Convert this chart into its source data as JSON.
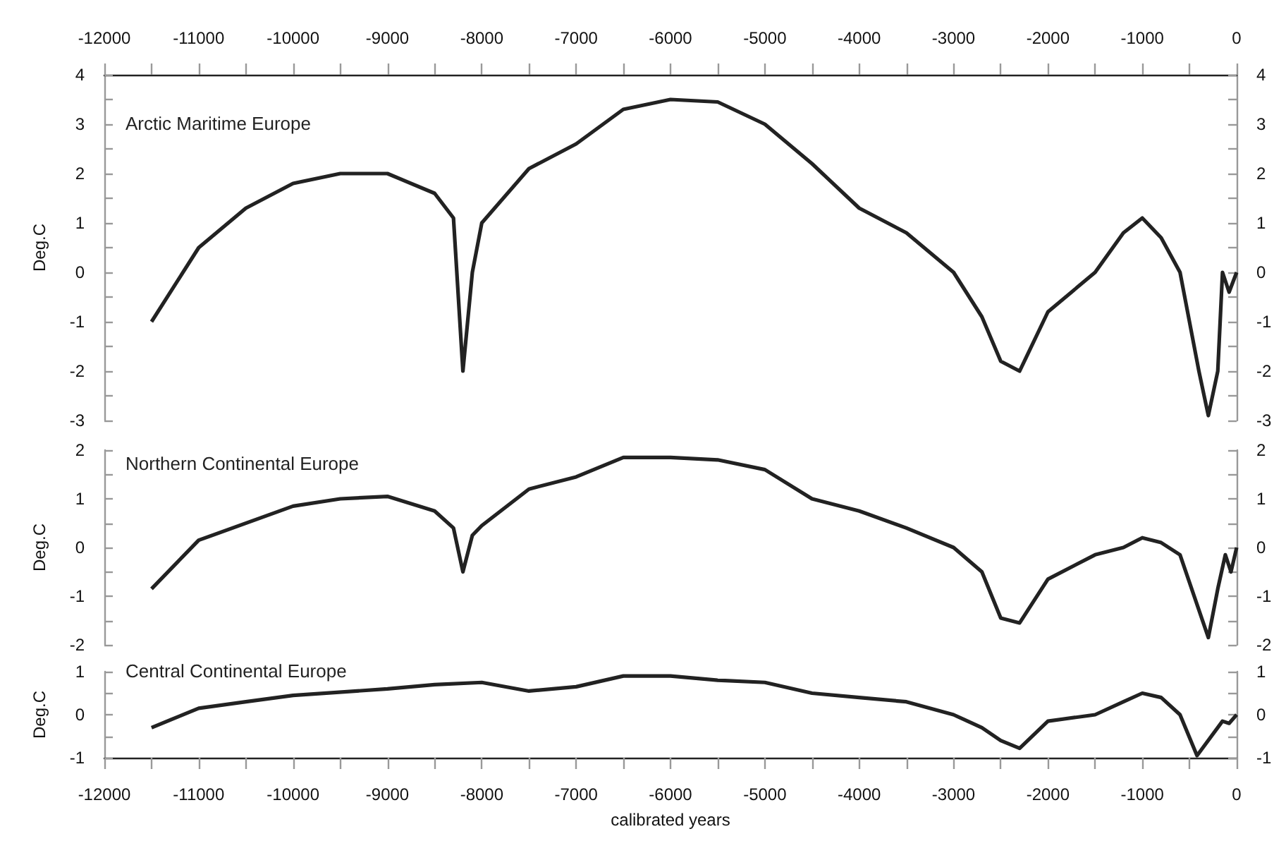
{
  "chart_data": [
    {
      "type": "line",
      "ylabel": "Deg.C",
      "xlim": [
        -12000,
        0
      ],
      "xticks": [
        -12000,
        {
          "value": -11500,
          "label": null
        },
        -11000,
        {
          "value": -10500,
          "label": null
        },
        -10000,
        {
          "value": -9500,
          "label": null
        },
        -9000,
        {
          "value": -8500,
          "label": null
        },
        -8000,
        {
          "value": -7500,
          "label": null
        },
        -7000,
        {
          "value": -6500,
          "label": null
        },
        -6000,
        {
          "value": -5500,
          "label": null
        },
        -5000,
        {
          "value": -4500,
          "label": null
        },
        -4000,
        {
          "value": -3500,
          "label": null
        },
        -3000,
        {
          "value": -2500,
          "label": null
        },
        -2000,
        {
          "value": -1500,
          "label": null
        },
        -1000,
        {
          "value": -500,
          "label": null
        },
        0
      ],
      "ylim": [
        -3,
        4
      ],
      "yticks": [
        -3,
        {
          "value": -2.5,
          "label": null
        },
        -2,
        {
          "value": -1.5,
          "label": null
        },
        -1,
        {
          "value": -0.5,
          "label": null
        },
        0,
        {
          "value": 0.5,
          "label": null
        },
        1,
        {
          "value": 1.5,
          "label": null
        },
        2,
        {
          "value": 2.5,
          "label": null
        },
        3,
        {
          "value": 3.5,
          "label": null
        },
        4
      ],
      "y2lim": [
        -3,
        4
      ],
      "y2ticks": [
        -3,
        {
          "value": -2.5,
          "label": null
        },
        -2,
        {
          "value": -1.5,
          "label": null
        },
        -1,
        {
          "value": -0.5,
          "label": null
        },
        0,
        {
          "value": 0.5,
          "label": null
        },
        1,
        {
          "value": 1.5,
          "label": null
        },
        2,
        {
          "value": 2.5,
          "label": null
        },
        3,
        {
          "value": 3.5,
          "label": null
        },
        4
      ],
      "grid": false,
      "legend": "top left",
      "series": [
        {
          "name": "Arctic Maritime Europe",
          "color": "#222222",
          "x": [
            -11500,
            -11000,
            -10500,
            -10000,
            -9500,
            -9000,
            -8500,
            -8300,
            -8200,
            -8100,
            -8000,
            -7500,
            -7000,
            -6500,
            -6000,
            -5500,
            -5000,
            -4500,
            -4000,
            -3500,
            -3000,
            -2700,
            -2500,
            -2300,
            -2000,
            -1500,
            -1200,
            -1000,
            -800,
            -600,
            -400,
            -300,
            -200,
            -150,
            -80,
            0
          ],
          "values": [
            -1,
            0.5,
            1.3,
            1.8,
            2.0,
            2.0,
            1.6,
            1.1,
            -2.0,
            0,
            1.0,
            2.1,
            2.6,
            3.3,
            3.5,
            3.45,
            3.0,
            2.2,
            1.3,
            0.8,
            0,
            -0.9,
            -1.8,
            -2.0,
            -0.8,
            0,
            0.8,
            1.1,
            0.7,
            0,
            -2,
            -2.9,
            -2,
            0,
            -0.4,
            0
          ]
        }
      ]
    },
    {
      "type": "line",
      "ylabel": "Deg.C",
      "xlim": [
        -12000,
        0
      ],
      "tick_labels": "y",
      "ylim": [
        -2,
        2
      ],
      "yticks": [
        -2,
        {
          "value": -1.5,
          "label": null
        },
        -1,
        {
          "value": -0.5,
          "label": null
        },
        0,
        {
          "value": 0.5,
          "label": null
        },
        1,
        {
          "value": 1.5,
          "label": null
        },
        2
      ],
      "y2lim": [
        -2,
        2
      ],
      "y2ticks": [
        -2,
        {
          "value": -1.5,
          "label": null
        },
        -1,
        {
          "value": -0.5,
          "label": null
        },
        0,
        {
          "value": 0.5,
          "label": null
        },
        1,
        {
          "value": 1.5,
          "label": null
        },
        2
      ],
      "grid": false,
      "legend": "top left",
      "series": [
        {
          "name": "Northern Continental Europe",
          "color": "#222222",
          "x": [
            -11500,
            -11000,
            -10000,
            -9500,
            -9000,
            -8500,
            -8300,
            -8200,
            -8100,
            -8000,
            -7500,
            -7000,
            -6500,
            -6000,
            -5500,
            -5000,
            -4500,
            -4000,
            -3500,
            -3000,
            -2700,
            -2500,
            -2300,
            -2000,
            -1500,
            -1200,
            -1000,
            -800,
            -600,
            -300,
            -200,
            -120,
            -60,
            0
          ],
          "values": [
            -0.85,
            0.15,
            0.85,
            1.0,
            1.05,
            0.75,
            0.4,
            -0.5,
            0.25,
            0.45,
            1.2,
            1.45,
            1.85,
            1.85,
            1.8,
            1.6,
            1.0,
            0.75,
            0.4,
            0,
            -0.5,
            -1.45,
            -1.55,
            -0.65,
            -0.15,
            0,
            0.2,
            0.1,
            -0.15,
            -1.85,
            -0.85,
            -0.15,
            -0.5,
            0
          ]
        }
      ]
    },
    {
      "type": "line",
      "xlabel": "calibrated years",
      "ylabel": "Deg.C",
      "xlim": [
        -12000,
        0
      ],
      "xticks": [
        -12000,
        {
          "value": -11500,
          "label": null
        },
        -11000,
        {
          "value": -10500,
          "label": null
        },
        -10000,
        {
          "value": -9500,
          "label": null
        },
        -9000,
        {
          "value": -8500,
          "label": null
        },
        -8000,
        {
          "value": -7500,
          "label": null
        },
        -7000,
        {
          "value": -6500,
          "label": null
        },
        -6000,
        {
          "value": -5500,
          "label": null
        },
        -5000,
        {
          "value": -4500,
          "label": null
        },
        -4000,
        {
          "value": -3500,
          "label": null
        },
        -3000,
        {
          "value": -2500,
          "label": null
        },
        -2000,
        {
          "value": -1500,
          "label": null
        },
        -1000,
        {
          "value": -500,
          "label": null
        },
        0
      ],
      "ylim": [
        -1,
        1
      ],
      "yticks": [
        -1,
        {
          "value": -0.5,
          "label": null
        },
        0,
        {
          "value": 0.5,
          "label": null
        },
        1
      ],
      "y2lim": [
        -1,
        1
      ],
      "y2ticks": [
        -1,
        {
          "value": -0.5,
          "label": null
        },
        0,
        {
          "value": 0.5,
          "label": null
        },
        1
      ],
      "grid": false,
      "legend": "top left",
      "series": [
        {
          "name": "Central Continental Europe",
          "color": "#222222",
          "x": [
            -11500,
            -11000,
            -10500,
            -10000,
            -9000,
            -8500,
            -8000,
            -7500,
            -7000,
            -6500,
            -6000,
            -5500,
            -5000,
            -4500,
            -4000,
            -3500,
            -3000,
            -2700,
            -2500,
            -2300,
            -2000,
            -1500,
            -1200,
            -1000,
            -800,
            -600,
            -420,
            -150,
            -80,
            0
          ],
          "values": [
            -0.3,
            0.15,
            0.3,
            0.45,
            0.6,
            0.7,
            0.75,
            0.55,
            0.65,
            0.9,
            0.9,
            0.8,
            0.75,
            0.5,
            0.4,
            0.3,
            0,
            -0.3,
            -0.6,
            -0.78,
            -0.15,
            0,
            0.3,
            0.5,
            0.4,
            0,
            -0.95,
            -0.15,
            -0.2,
            0
          ]
        }
      ]
    }
  ]
}
